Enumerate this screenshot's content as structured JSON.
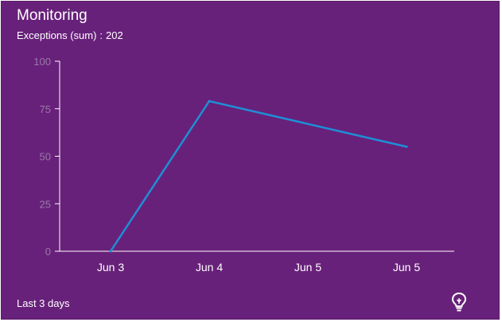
{
  "tile": {
    "title": "Monitoring",
    "metric_label": "Exceptions (sum)",
    "metric_separator": ":",
    "metric_value": "202",
    "time_range": "Last 3 days",
    "insight_icon": "lightbulb-icon"
  },
  "colors": {
    "background": "#68217a",
    "line": "#1e8fd6",
    "axis": "#ffffff",
    "tick_text": "#9a7aa8",
    "text": "#ffffff"
  },
  "chart_data": {
    "type": "line",
    "categories": [
      "Jun 3",
      "Jun 4",
      "Jun 5",
      "Jun 5"
    ],
    "series": [
      {
        "values": [
          0,
          79,
          null,
          55
        ]
      }
    ],
    "yticks": [
      0,
      25,
      50,
      75,
      100
    ],
    "ylim": [
      0,
      100
    ],
    "grid": false
  }
}
